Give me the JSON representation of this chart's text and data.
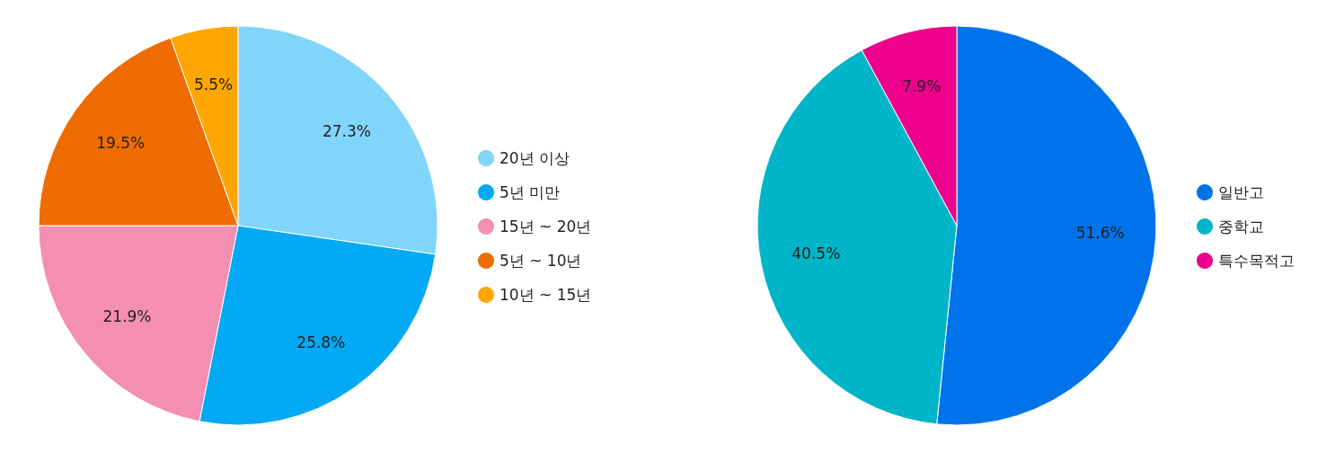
{
  "chart_data": [
    {
      "type": "pie",
      "categories": [
        "20년 이상",
        "5년 미만",
        "15년 ~ 20년",
        "5년 ~ 10년",
        "10년 ~ 15년"
      ],
      "values": [
        27.3,
        25.8,
        21.9,
        19.5,
        5.5
      ],
      "colors": [
        "#81d4fa",
        "#03a9f4",
        "#f48fb1",
        "#ef6c00",
        "#ffa600"
      ],
      "value_labels": [
        "27.3%",
        "25.8%",
        "21.9%",
        "19.5%",
        "5.5%"
      ],
      "legend": "right"
    },
    {
      "type": "pie",
      "categories": [
        "일반고",
        "중학교",
        "특수목적고"
      ],
      "values": [
        51.6,
        40.5,
        7.9
      ],
      "colors": [
        "#0073ea",
        "#00b5c8",
        "#ec008c"
      ],
      "value_labels": [
        "51.6%",
        "40.5%",
        "7.9%"
      ],
      "legend": "right"
    }
  ]
}
